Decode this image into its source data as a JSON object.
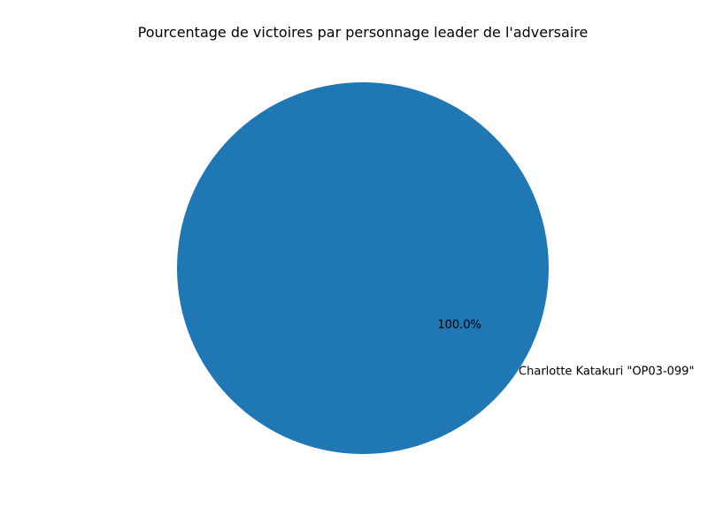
{
  "chart_data": {
    "type": "pie",
    "title": "Pourcentage de victoires par personnage leader de l'adversaire",
    "categories": [
      "Charlotte Katakuri \"OP03-099\""
    ],
    "values": [
      100.0
    ],
    "percent_labels": [
      "100.0%"
    ],
    "colors": [
      "#1f77b4"
    ],
    "legend": "none"
  }
}
